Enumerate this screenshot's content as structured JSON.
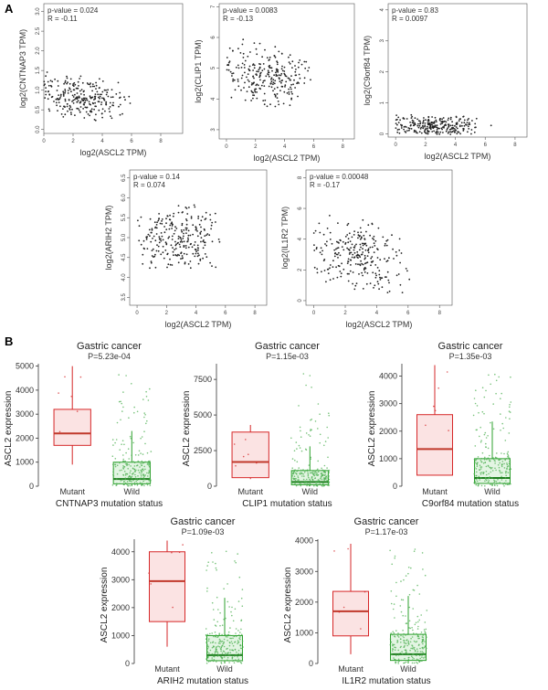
{
  "panels": {
    "a": "A",
    "b": "B"
  },
  "scatter_x_data": {
    "xs": [
      0.1,
      0.3,
      0.5,
      0.7,
      0.9,
      1.1,
      1.2,
      1.4,
      1.6,
      1.8,
      2.0,
      2.2,
      2.4,
      2.5,
      2.7,
      2.9,
      3.1,
      3.3,
      3.5,
      3.7,
      3.9,
      4.1,
      4.3,
      4.5,
      4.7,
      4.9,
      5.1,
      5.3,
      5.5,
      5.7,
      6.0,
      6.3,
      6.6,
      6.9,
      7.2,
      7.6,
      8.0
    ],
    "fs": [
      0.35,
      0.8,
      0.1,
      0.55,
      0.95,
      0.25,
      0.65,
      0.45,
      0.05,
      0.75,
      0.3,
      0.9,
      0.6,
      0.15,
      0.5,
      0.85,
      0.2,
      0.7,
      0.4,
      1.0,
      0.35,
      0.6,
      0.1,
      0.8,
      0.5,
      0.25,
      0.9,
      0.45,
      0.65,
      0.15,
      0.75,
      0.55,
      0.3,
      0.85,
      0.4,
      0.2,
      0.6
    ]
  },
  "chart_data": [
    {
      "type": "scatter",
      "xlabel": "log2(ASCL2 TPM)",
      "ylabel": "log2(CNTNAP3 TPM)",
      "stats": [
        "p-value = 0.024",
        "R = -0.11"
      ],
      "xlim": [
        0,
        9.5
      ],
      "ylim": [
        -0.1,
        3.2
      ],
      "x_ticks": [
        "0",
        "2",
        "4",
        "6",
        "8"
      ],
      "y_ticks": [
        "0.0",
        "0.5",
        "1.0",
        "1.5",
        "2.0",
        "2.5",
        "3.0"
      ],
      "trend": [
        0.9,
        -0.04
      ],
      "trend_noise": 0.6
    },
    {
      "type": "scatter",
      "xlabel": "log2(ASCL2 TPM)",
      "ylabel": "log2(CLIP1 TPM)",
      "stats": [
        "p-value = 0.0083",
        "R = -0.13"
      ],
      "xlim": [
        -0.5,
        8.8
      ],
      "ylim": [
        2.7,
        7.1
      ],
      "x_ticks": [
        "0",
        "2",
        "4",
        "6",
        "8"
      ],
      "y_ticks": [
        "3",
        "4",
        "5",
        "6",
        "7"
      ],
      "trend": [
        5.0,
        -0.07
      ],
      "trend_noise": 1.1
    },
    {
      "type": "scatter",
      "xlabel": "log2(ASCL2 TPM)",
      "ylabel": "log2(C9orf84 TPM)",
      "stats": [
        "p-value = 0.83",
        "R = 0.0097"
      ],
      "xlim": [
        -0.5,
        8.8
      ],
      "ylim": [
        -0.1,
        4.2
      ],
      "x_ticks": [
        "0",
        "2",
        "4",
        "6",
        "8"
      ],
      "y_ticks": [
        "0",
        "1",
        "2",
        "3",
        "4"
      ],
      "trend": [
        0.25,
        0.0
      ],
      "trend_noise": 0.4
    },
    {
      "type": "scatter",
      "xlabel": "log2(ASCL2 TPM)",
      "ylabel": "log2(ARIH2 TPM)",
      "stats": [
        "p-value = 0.14",
        "R = 0.074"
      ],
      "xlim": [
        -0.5,
        8.8
      ],
      "ylim": [
        3.3,
        6.7
      ],
      "x_ticks": [
        "0",
        "2",
        "4",
        "6",
        "8"
      ],
      "y_ticks": [
        "3.5",
        "4.0",
        "4.5",
        "5.0",
        "5.5",
        "6.0",
        "6.5"
      ],
      "trend": [
        5.0,
        0.0
      ],
      "trend_noise": 0.9
    },
    {
      "type": "scatter",
      "xlabel": "log2(ASCL2 TPM)",
      "ylabel": "log2(IL1R2 TPM)",
      "stats": [
        "p-value = 0.00048",
        "R = -0.17"
      ],
      "xlim": [
        -0.5,
        8.8
      ],
      "ylim": [
        -0.3,
        8.5
      ],
      "x_ticks": [
        "0",
        "2",
        "4",
        "6",
        "8"
      ],
      "y_ticks": [
        "0",
        "2",
        "4",
        "6",
        "8"
      ],
      "trend": [
        3.5,
        -0.2
      ],
      "trend_noise": 2.5
    },
    {
      "type": "box",
      "title": "Gastric cancer",
      "subtitle": "P=5.23e-04",
      "xlabel": "CNTNAP3 mutation status",
      "ylabel": "ASCL2 expression",
      "categories": [
        "Mutant",
        "Wild"
      ],
      "ylim": [
        0,
        5100
      ],
      "y_ticks": [
        "0",
        "1000",
        "2000",
        "3000",
        "4000",
        "5000"
      ],
      "boxes": [
        {
          "whislo": 900,
          "q1": 1700,
          "med": 2200,
          "q3": 3200,
          "whishi": 5000
        },
        {
          "whislo": 0,
          "q1": 100,
          "med": 300,
          "q3": 1000,
          "whishi": 2300
        }
      ]
    },
    {
      "type": "box",
      "title": "Gastric cancer",
      "subtitle": "P=1.15e-03",
      "xlabel": "CLIP1 mutation status",
      "ylabel": "ASCL2 expression",
      "categories": [
        "Mutant",
        "Wild"
      ],
      "ylim": [
        0,
        8600
      ],
      "y_ticks": [
        "0",
        "2500",
        "5000",
        "7500"
      ],
      "boxes": [
        {
          "whislo": 500,
          "q1": 600,
          "med": 1700,
          "q3": 3800,
          "whishi": 4300
        },
        {
          "whislo": 0,
          "q1": 100,
          "med": 300,
          "q3": 1100,
          "whishi": 2800
        }
      ]
    },
    {
      "type": "box",
      "title": "Gastric cancer",
      "subtitle": "P=1.35e-03",
      "xlabel": "C9orf84 mutation status",
      "ylabel": "ASCL2 expression",
      "categories": [
        "Mutant",
        "Wild"
      ],
      "ylim": [
        0,
        4450
      ],
      "y_ticks": [
        "0",
        "1000",
        "2000",
        "3000",
        "4000"
      ],
      "boxes": [
        {
          "whislo": 400,
          "q1": 400,
          "med": 1350,
          "q3": 2600,
          "whishi": 4400
        },
        {
          "whislo": 0,
          "q1": 100,
          "med": 300,
          "q3": 1000,
          "whishi": 2350
        }
      ]
    },
    {
      "type": "box",
      "title": "Gastric cancer",
      "subtitle": "P=1.09e-03",
      "xlabel": "ARIH2 mutation status",
      "ylabel": "ASCL2 expression",
      "categories": [
        "Mutant",
        "Wild"
      ],
      "ylim": [
        0,
        4450
      ],
      "y_ticks": [
        "0",
        "1000",
        "2000",
        "3000",
        "4000"
      ],
      "boxes": [
        {
          "whislo": 600,
          "q1": 1500,
          "med": 2950,
          "q3": 4000,
          "whishi": 4400
        },
        {
          "whislo": 0,
          "q1": 100,
          "med": 300,
          "q3": 1000,
          "whishi": 2350
        }
      ]
    },
    {
      "type": "box",
      "title": "Gastric cancer",
      "subtitle": "P=1.17e-03",
      "xlabel": "IL1R2 mutation status",
      "ylabel": "ASCL2 expression",
      "categories": [
        "Mutant",
        "Wild"
      ],
      "ylim": [
        0,
        4050
      ],
      "y_ticks": [
        "0",
        "1000",
        "2000",
        "3000",
        "4000"
      ],
      "boxes": [
        {
          "whislo": 300,
          "q1": 900,
          "med": 1700,
          "q3": 2350,
          "whishi": 3900
        },
        {
          "whislo": 0,
          "q1": 100,
          "med": 300,
          "q3": 950,
          "whishi": 2200
        }
      ]
    }
  ],
  "colors": {
    "mutant_line": "#d62728",
    "mutant_fill": "#fbe3e3",
    "wild_line": "#2ca02c",
    "wild_fill": "#e3f5e3",
    "median_mutant": "#c0392b",
    "median_wild": "#1e7d1e",
    "points": "#222222",
    "axis": "#555555",
    "jitter": "#4caf50"
  }
}
